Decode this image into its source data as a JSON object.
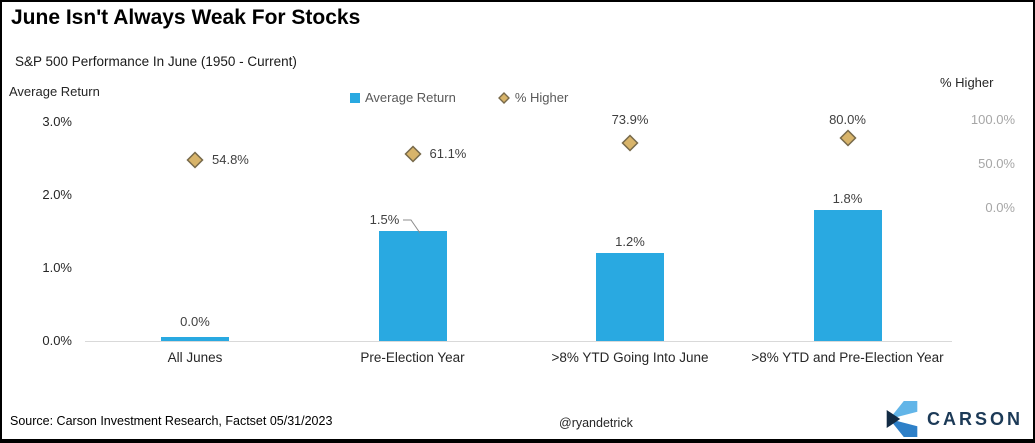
{
  "header": {
    "title": "June Isn't Always Weak For Stocks",
    "subtitle": "S&P 500 Performance In June (1950 - Current)"
  },
  "chart_data": {
    "type": "bar",
    "title": "June Isn't Always Weak For Stocks",
    "subtitle": "S&P 500 Performance In June (1950 - Current)",
    "categories": [
      "All Junes",
      "Pre-Election Year",
      ">8% YTD Going Into June",
      ">8% YTD and Pre-Election Year"
    ],
    "series": [
      {
        "name": "Average Return",
        "type": "bar",
        "axis": "left",
        "color": "#29A9E1",
        "values": [
          0.0,
          1.5,
          1.2,
          1.8
        ],
        "labels": [
          "0.0%",
          "1.5%",
          "1.2%",
          "1.8%"
        ]
      },
      {
        "name": "% Higher",
        "type": "scatter",
        "axis": "right",
        "marker": "diamond",
        "color": "#D8B46A",
        "marker_border": "#77694A",
        "values": [
          54.8,
          61.1,
          73.9,
          80.0
        ],
        "labels": [
          "54.8%",
          "61.1%",
          "73.9%",
          "80.0%"
        ],
        "label_positions": [
          "right",
          "right",
          "above",
          "above"
        ]
      }
    ],
    "left_axis": {
      "title": "Average Return",
      "tick_labels": [
        "0.0%",
        "1.0%",
        "2.0%",
        "3.0%"
      ],
      "tick_values": [
        0,
        1,
        2,
        3
      ],
      "range": [
        0,
        3
      ]
    },
    "right_axis": {
      "title": "% Higher",
      "tick_labels": [
        "0.0%",
        "50.0%",
        "100.0%"
      ],
      "tick_values": [
        0,
        50,
        100
      ]
    },
    "legend": {
      "position": "top",
      "entries": [
        "Average Return",
        "% Higher"
      ]
    },
    "grid": false
  },
  "footer": {
    "source": "Source: Carson Investment Research, Factset 05/31/2023",
    "handle": "@ryandetrick",
    "brand": "CARSON"
  },
  "colors": {
    "bar": "#29A9E1",
    "marker_fill": "#D8B46A",
    "marker_border": "#77694A",
    "axis_line": "#D9D9D9",
    "leader_line": "#8C8C8C",
    "brand_navy": "#1C3A57",
    "brand_light_blue": "#62B5E8",
    "brand_mid_blue": "#2E80C8",
    "brand_dark": "#122B44"
  }
}
